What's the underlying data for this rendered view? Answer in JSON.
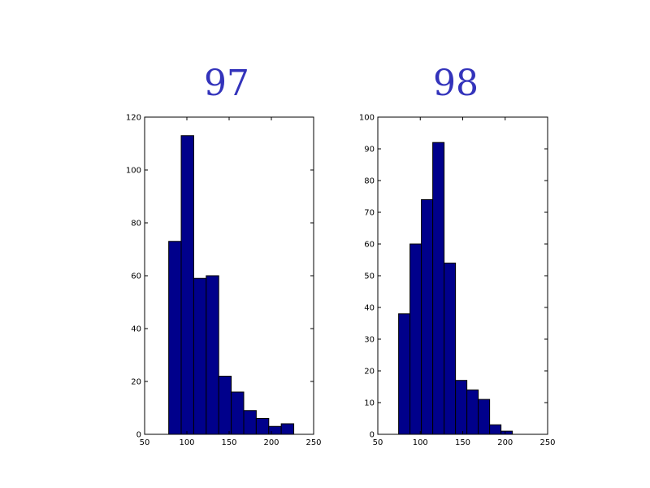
{
  "colors": {
    "bar_fill": "#00008b",
    "title_color": "#3333bb"
  },
  "chart_data": [
    {
      "type": "bar",
      "title": "97",
      "xlim": [
        50,
        250
      ],
      "ylim": [
        0,
        120
      ],
      "xticks": [
        50,
        100,
        150,
        200,
        250
      ],
      "yticks": [
        0,
        20,
        40,
        60,
        80,
        100,
        120
      ],
      "bins": [
        {
          "x0": 78.5,
          "x1": 93.3,
          "value": 73
        },
        {
          "x0": 93.3,
          "x1": 108.1,
          "value": 113
        },
        {
          "x0": 108.1,
          "x1": 122.9,
          "value": 59
        },
        {
          "x0": 122.9,
          "x1": 137.7,
          "value": 60
        },
        {
          "x0": 137.7,
          "x1": 152.5,
          "value": 22
        },
        {
          "x0": 152.5,
          "x1": 167.3,
          "value": 16
        },
        {
          "x0": 167.3,
          "x1": 182.1,
          "value": 9
        },
        {
          "x0": 182.1,
          "x1": 196.9,
          "value": 6
        },
        {
          "x0": 196.9,
          "x1": 211.7,
          "value": 3
        },
        {
          "x0": 211.7,
          "x1": 226.5,
          "value": 4
        }
      ]
    },
    {
      "type": "bar",
      "title": "98",
      "xlim": [
        50,
        250
      ],
      "ylim": [
        0,
        100
      ],
      "xticks": [
        50,
        100,
        150,
        200,
        250
      ],
      "yticks": [
        0,
        10,
        20,
        30,
        40,
        50,
        60,
        70,
        80,
        90,
        100
      ],
      "bins": [
        {
          "x0": 74.5,
          "x1": 87.9,
          "value": 38
        },
        {
          "x0": 87.9,
          "x1": 101.3,
          "value": 60
        },
        {
          "x0": 101.3,
          "x1": 114.7,
          "value": 74
        },
        {
          "x0": 114.7,
          "x1": 128.1,
          "value": 92
        },
        {
          "x0": 128.1,
          "x1": 141.5,
          "value": 54
        },
        {
          "x0": 141.5,
          "x1": 154.9,
          "value": 17
        },
        {
          "x0": 154.9,
          "x1": 168.3,
          "value": 14
        },
        {
          "x0": 168.3,
          "x1": 181.7,
          "value": 11
        },
        {
          "x0": 181.7,
          "x1": 195.1,
          "value": 3
        },
        {
          "x0": 195.1,
          "x1": 208.5,
          "value": 1
        }
      ]
    }
  ]
}
